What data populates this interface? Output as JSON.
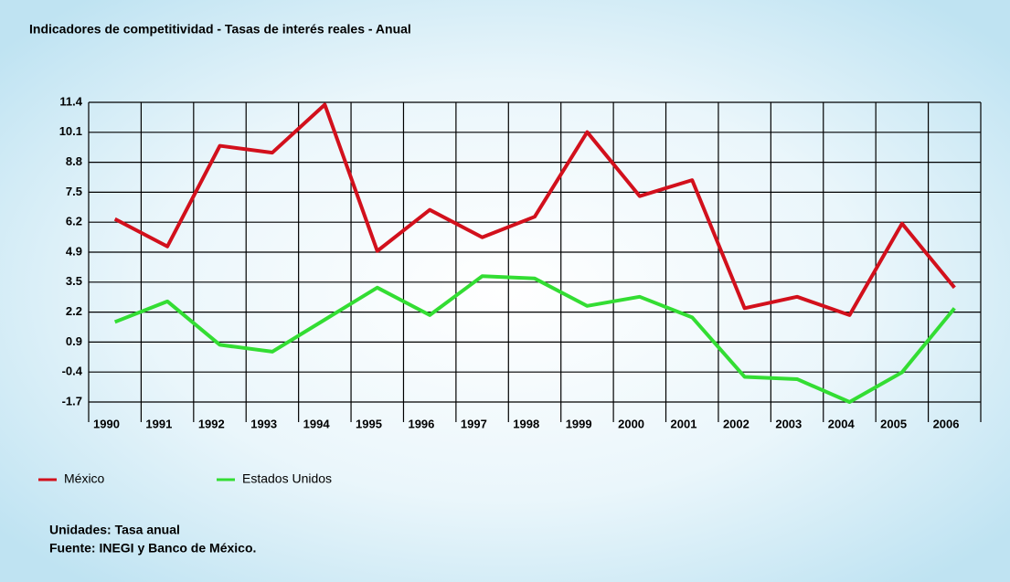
{
  "chart_data": {
    "type": "line",
    "title": "Indicadores de competitividad - Tasas de interés reales - Anual",
    "categories": [
      "1990",
      "1991",
      "1992",
      "1993",
      "1994",
      "1995",
      "1996",
      "1997",
      "1998",
      "1999",
      "2000",
      "2001",
      "2002",
      "2003",
      "2004",
      "2005",
      "2006"
    ],
    "series": [
      {
        "name": "México",
        "color": "#d2101c",
        "values": [
          6.3,
          5.1,
          9.5,
          9.2,
          11.3,
          4.9,
          6.7,
          5.5,
          6.4,
          10.1,
          7.3,
          8.0,
          2.4,
          2.9,
          2.1,
          6.1,
          3.3
        ]
      },
      {
        "name": "Estados Unidos",
        "color": "#33dd33",
        "values": [
          1.8,
          2.7,
          0.8,
          0.5,
          1.9,
          3.3,
          2.1,
          3.8,
          3.7,
          2.5,
          2.9,
          2.0,
          -0.6,
          -0.7,
          -1.7,
          -0.4,
          2.4
        ]
      }
    ],
    "ylim": [
      -1.7,
      11.4
    ],
    "yticks": [
      -1.7,
      {
        "value": -0.39,
        "label": "-0.4"
      },
      {
        "value": 0.92,
        "label": "0.9"
      },
      {
        "value": 2.23,
        "label": "2.2"
      },
      {
        "value": 3.54,
        "label": "3.5"
      },
      {
        "value": 4.85,
        "label": "4.9"
      },
      {
        "value": 6.16,
        "label": "6.2"
      },
      {
        "value": 7.47,
        "label": "7.5"
      },
      {
        "value": 8.78,
        "label": "8.8"
      },
      {
        "value": 10.09,
        "label": "10.1"
      },
      11.4
    ],
    "grid": true,
    "notes": [
      "Unidades: Tasa anual",
      "Fuente: INEGI y Banco de México."
    ]
  }
}
